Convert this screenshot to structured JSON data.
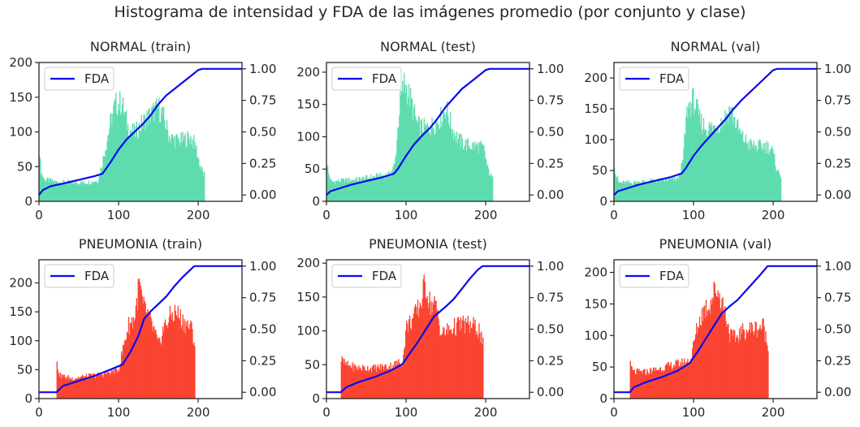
{
  "figure": {
    "title": "Histograma de intensidad y FDA de las imágenes promedio (por conjunto y clase)",
    "colors": {
      "normal": "#5fdcae",
      "pneumonia": "#fb4431",
      "cdf": "#0a0aef"
    }
  },
  "chart_data": [
    {
      "type": "bar",
      "title": "NORMAL (train)",
      "class": "normal",
      "xlim": [
        0,
        255
      ],
      "xticks": [
        0,
        100,
        200
      ],
      "ylim": [
        0,
        200
      ],
      "yticks": [
        0,
        50,
        100,
        150,
        200
      ],
      "y2lim": [
        -0.05,
        1.05
      ],
      "y2ticks": [
        "0.00",
        "0.25",
        "0.50",
        "0.75",
        "1.00"
      ],
      "hist_range": [
        0,
        207
      ],
      "hist_profile": [
        [
          0,
          86
        ],
        [
          2,
          45
        ],
        [
          6,
          32
        ],
        [
          20,
          28
        ],
        [
          40,
          27
        ],
        [
          60,
          27
        ],
        [
          74,
          30
        ],
        [
          80,
          58
        ],
        [
          90,
          115
        ],
        [
          96,
          140
        ],
        [
          104,
          142
        ],
        [
          112,
          105
        ],
        [
          120,
          98
        ],
        [
          130,
          113
        ],
        [
          140,
          125
        ],
        [
          150,
          135
        ],
        [
          156,
          122
        ],
        [
          164,
          92
        ],
        [
          172,
          88
        ],
        [
          180,
          88
        ],
        [
          190,
          92
        ],
        [
          196,
          82
        ],
        [
          202,
          52
        ],
        [
          207,
          38
        ]
      ],
      "legend": "FDA",
      "cdf": [
        [
          0,
          0.0
        ],
        [
          5,
          0.04
        ],
        [
          15,
          0.07
        ],
        [
          30,
          0.09
        ],
        [
          50,
          0.12
        ],
        [
          70,
          0.15
        ],
        [
          80,
          0.17
        ],
        [
          90,
          0.26
        ],
        [
          100,
          0.36
        ],
        [
          110,
          0.44
        ],
        [
          120,
          0.5
        ],
        [
          130,
          0.56
        ],
        [
          140,
          0.63
        ],
        [
          150,
          0.72
        ],
        [
          160,
          0.79
        ],
        [
          170,
          0.84
        ],
        [
          180,
          0.89
        ],
        [
          190,
          0.94
        ],
        [
          200,
          0.99
        ],
        [
          205,
          1.0
        ],
        [
          255,
          1.0
        ]
      ]
    },
    {
      "type": "bar",
      "title": "NORMAL (test)",
      "class": "normal",
      "xlim": [
        0,
        255
      ],
      "xticks": [
        0,
        100,
        200
      ],
      "ylim": [
        0,
        215
      ],
      "yticks": [
        0,
        50,
        100,
        150,
        200
      ],
      "y2lim": [
        -0.05,
        1.05
      ],
      "y2ticks": [
        "0.00",
        "0.25",
        "0.50",
        "0.75",
        "1.00"
      ],
      "hist_range": [
        0,
        208
      ],
      "hist_profile": [
        [
          0,
          68
        ],
        [
          2,
          45
        ],
        [
          6,
          30
        ],
        [
          20,
          32
        ],
        [
          40,
          34
        ],
        [
          60,
          38
        ],
        [
          80,
          42
        ],
        [
          86,
          58
        ],
        [
          92,
          150
        ],
        [
          98,
          185
        ],
        [
          106,
          155
        ],
        [
          114,
          118
        ],
        [
          124,
          112
        ],
        [
          134,
          118
        ],
        [
          144,
          130
        ],
        [
          150,
          145
        ],
        [
          158,
          112
        ],
        [
          166,
          95
        ],
        [
          174,
          88
        ],
        [
          184,
          86
        ],
        [
          192,
          85
        ],
        [
          198,
          80
        ],
        [
          202,
          52
        ],
        [
          208,
          35
        ]
      ],
      "legend": "FDA",
      "cdf": [
        [
          0,
          0.0
        ],
        [
          5,
          0.03
        ],
        [
          15,
          0.05
        ],
        [
          30,
          0.08
        ],
        [
          50,
          0.11
        ],
        [
          70,
          0.14
        ],
        [
          85,
          0.17
        ],
        [
          90,
          0.21
        ],
        [
          100,
          0.31
        ],
        [
          110,
          0.4
        ],
        [
          120,
          0.47
        ],
        [
          130,
          0.53
        ],
        [
          140,
          0.61
        ],
        [
          150,
          0.7
        ],
        [
          160,
          0.77
        ],
        [
          170,
          0.84
        ],
        [
          180,
          0.89
        ],
        [
          190,
          0.94
        ],
        [
          200,
          0.99
        ],
        [
          205,
          1.0
        ],
        [
          255,
          1.0
        ]
      ]
    },
    {
      "type": "bar",
      "title": "NORMAL (val)",
      "class": "normal",
      "xlim": [
        0,
        255
      ],
      "xticks": [
        0,
        100,
        200
      ],
      "ylim": [
        0,
        225
      ],
      "yticks": [
        0,
        50,
        100,
        150,
        200
      ],
      "y2lim": [
        -0.05,
        1.05
      ],
      "y2ticks": [
        "0.00",
        "0.25",
        "0.50",
        "0.75",
        "1.00"
      ],
      "hist_range": [
        0,
        209
      ],
      "hist_profile": [
        [
          0,
          68
        ],
        [
          2,
          45
        ],
        [
          6,
          30
        ],
        [
          20,
          30
        ],
        [
          40,
          32
        ],
        [
          60,
          34
        ],
        [
          80,
          36
        ],
        [
          86,
          60
        ],
        [
          92,
          150
        ],
        [
          100,
          165
        ],
        [
          108,
          130
        ],
        [
          116,
          118
        ],
        [
          126,
          120
        ],
        [
          136,
          130
        ],
        [
          146,
          150
        ],
        [
          152,
          130
        ],
        [
          160,
          105
        ],
        [
          170,
          92
        ],
        [
          180,
          88
        ],
        [
          190,
          90
        ],
        [
          198,
          85
        ],
        [
          204,
          55
        ],
        [
          209,
          40
        ]
      ],
      "legend": "FDA",
      "cdf": [
        [
          0,
          0.0
        ],
        [
          5,
          0.03
        ],
        [
          15,
          0.05
        ],
        [
          30,
          0.08
        ],
        [
          50,
          0.11
        ],
        [
          70,
          0.14
        ],
        [
          85,
          0.17
        ],
        [
          90,
          0.21
        ],
        [
          100,
          0.31
        ],
        [
          110,
          0.39
        ],
        [
          120,
          0.46
        ],
        [
          130,
          0.53
        ],
        [
          140,
          0.6
        ],
        [
          150,
          0.68
        ],
        [
          160,
          0.75
        ],
        [
          170,
          0.81
        ],
        [
          180,
          0.87
        ],
        [
          190,
          0.93
        ],
        [
          200,
          0.99
        ],
        [
          205,
          1.0
        ],
        [
          255,
          1.0
        ]
      ]
    },
    {
      "type": "bar",
      "title": "PNEUMONIA (train)",
      "class": "pneumonia",
      "xlim": [
        0,
        255
      ],
      "xticks": [
        0,
        100,
        200
      ],
      "ylim": [
        0,
        240
      ],
      "yticks": [
        0,
        50,
        100,
        150,
        200
      ],
      "y2lim": [
        -0.05,
        1.05
      ],
      "y2ticks": [
        "0.00",
        "0.25",
        "0.50",
        "0.75",
        "1.00"
      ],
      "hist_range": [
        22,
        195
      ],
      "hist_profile": [
        [
          22,
          62
        ],
        [
          26,
          40
        ],
        [
          40,
          35
        ],
        [
          60,
          38
        ],
        [
          80,
          42
        ],
        [
          100,
          50
        ],
        [
          106,
          90
        ],
        [
          112,
          125
        ],
        [
          120,
          140
        ],
        [
          126,
          200
        ],
        [
          130,
          160
        ],
        [
          138,
          140
        ],
        [
          146,
          110
        ],
        [
          150,
          90
        ],
        [
          156,
          120
        ],
        [
          164,
          140
        ],
        [
          172,
          150
        ],
        [
          180,
          135
        ],
        [
          188,
          125
        ],
        [
          192,
          120
        ],
        [
          195,
          95
        ]
      ],
      "legend": "FDA",
      "cdf": [
        [
          0,
          0.0
        ],
        [
          22,
          0.0
        ],
        [
          30,
          0.05
        ],
        [
          50,
          0.09
        ],
        [
          70,
          0.13
        ],
        [
          90,
          0.18
        ],
        [
          105,
          0.22
        ],
        [
          115,
          0.32
        ],
        [
          125,
          0.45
        ],
        [
          132,
          0.58
        ],
        [
          140,
          0.64
        ],
        [
          150,
          0.7
        ],
        [
          160,
          0.76
        ],
        [
          170,
          0.84
        ],
        [
          180,
          0.91
        ],
        [
          190,
          0.97
        ],
        [
          195,
          1.0
        ],
        [
          255,
          1.0
        ]
      ]
    },
    {
      "type": "bar",
      "title": "PNEUMONIA (test)",
      "class": "pneumonia",
      "xlim": [
        0,
        255
      ],
      "xticks": [
        0,
        100,
        200
      ],
      "ylim": [
        0,
        205
      ],
      "yticks": [
        0,
        50,
        100,
        150,
        200
      ],
      "y2lim": [
        -0.05,
        1.05
      ],
      "y2ticks": [
        "0.00",
        "0.25",
        "0.50",
        "0.75",
        "1.00"
      ],
      "hist_range": [
        18,
        196
      ],
      "hist_profile": [
        [
          18,
          58
        ],
        [
          24,
          50
        ],
        [
          40,
          45
        ],
        [
          60,
          45
        ],
        [
          80,
          48
        ],
        [
          96,
          55
        ],
        [
          100,
          105
        ],
        [
          110,
          120
        ],
        [
          118,
          140
        ],
        [
          124,
          170
        ],
        [
          130,
          140
        ],
        [
          138,
          135
        ],
        [
          144,
          95
        ],
        [
          152,
          100
        ],
        [
          160,
          105
        ],
        [
          170,
          110
        ],
        [
          180,
          108
        ],
        [
          188,
          105
        ],
        [
          192,
          100
        ],
        [
          196,
          80
        ]
      ],
      "legend": "FDA",
      "cdf": [
        [
          0,
          0.0
        ],
        [
          18,
          0.0
        ],
        [
          25,
          0.04
        ],
        [
          40,
          0.08
        ],
        [
          60,
          0.12
        ],
        [
          80,
          0.17
        ],
        [
          95,
          0.22
        ],
        [
          105,
          0.31
        ],
        [
          115,
          0.4
        ],
        [
          125,
          0.5
        ],
        [
          135,
          0.6
        ],
        [
          150,
          0.68
        ],
        [
          160,
          0.74
        ],
        [
          170,
          0.82
        ],
        [
          180,
          0.9
        ],
        [
          190,
          0.97
        ],
        [
          196,
          1.0
        ],
        [
          255,
          1.0
        ]
      ]
    },
    {
      "type": "bar",
      "title": "PNEUMONIA (val)",
      "class": "pneumonia",
      "xlim": [
        0,
        255
      ],
      "xticks": [
        0,
        100,
        200
      ],
      "ylim": [
        0,
        220
      ],
      "yticks": [
        0,
        50,
        100,
        150,
        200
      ],
      "y2lim": [
        -0.05,
        1.05
      ],
      "y2ticks": [
        "0.00",
        "0.25",
        "0.50",
        "0.75",
        "1.00"
      ],
      "hist_range": [
        20,
        193
      ],
      "hist_profile": [
        [
          20,
          55
        ],
        [
          24,
          42
        ],
        [
          40,
          42
        ],
        [
          60,
          48
        ],
        [
          80,
          55
        ],
        [
          96,
          60
        ],
        [
          104,
          110
        ],
        [
          112,
          140
        ],
        [
          120,
          150
        ],
        [
          128,
          175
        ],
        [
          134,
          160
        ],
        [
          140,
          135
        ],
        [
          146,
          100
        ],
        [
          152,
          95
        ],
        [
          160,
          105
        ],
        [
          170,
          110
        ],
        [
          180,
          112
        ],
        [
          188,
          115
        ],
        [
          193,
          80
        ]
      ],
      "legend": "FDA",
      "cdf": [
        [
          0,
          0.0
        ],
        [
          20,
          0.0
        ],
        [
          25,
          0.04
        ],
        [
          40,
          0.08
        ],
        [
          60,
          0.12
        ],
        [
          80,
          0.17
        ],
        [
          95,
          0.23
        ],
        [
          105,
          0.32
        ],
        [
          115,
          0.42
        ],
        [
          125,
          0.52
        ],
        [
          135,
          0.62
        ],
        [
          145,
          0.68
        ],
        [
          155,
          0.73
        ],
        [
          165,
          0.8
        ],
        [
          175,
          0.87
        ],
        [
          185,
          0.94
        ],
        [
          193,
          1.0
        ],
        [
          255,
          1.0
        ]
      ]
    }
  ]
}
